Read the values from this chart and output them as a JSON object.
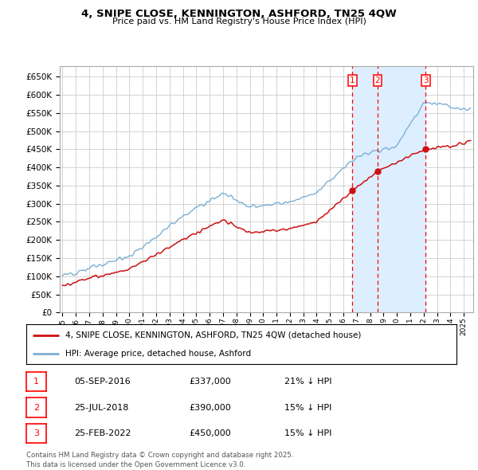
{
  "title": "4, SNIPE CLOSE, KENNINGTON, ASHFORD, TN25 4QW",
  "subtitle": "Price paid vs. HM Land Registry's House Price Index (HPI)",
  "ylim": [
    0,
    680000
  ],
  "yticks": [
    0,
    50000,
    100000,
    150000,
    200000,
    250000,
    300000,
    350000,
    400000,
    450000,
    500000,
    550000,
    600000,
    650000
  ],
  "bg_color": "#ffffff",
  "grid_color": "#cccccc",
  "hpi_color": "#7bafd4",
  "price_color": "#cc1111",
  "shade_color": "#ddeeff",
  "transactions": [
    {
      "label": "1",
      "date_num": 2016.678,
      "price": 337000,
      "note": "21% ↓ HPI",
      "date_str": "05-SEP-2016",
      "price_str": "£337,000"
    },
    {
      "label": "2",
      "date_num": 2018.558,
      "price": 390000,
      "note": "15% ↓ HPI",
      "date_str": "25-JUL-2018",
      "price_str": "£390,000"
    },
    {
      "label": "3",
      "date_num": 2022.146,
      "price": 450000,
      "note": "15% ↓ HPI",
      "date_str": "25-FEB-2022",
      "price_str": "£450,000"
    }
  ],
  "legend_property": "4, SNIPE CLOSE, KENNINGTON, ASHFORD, TN25 4QW (detached house)",
  "legend_hpi": "HPI: Average price, detached house, Ashford",
  "footer": "Contains HM Land Registry data © Crown copyright and database right 2025.\nThis data is licensed under the Open Government Licence v3.0."
}
